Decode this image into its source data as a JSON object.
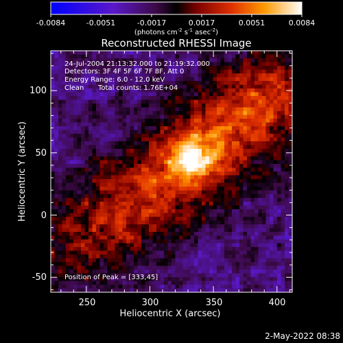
{
  "colorbar": {
    "ticks": [
      "-0.0084",
      "-0.0051",
      "-0.0017",
      "0.0017",
      "0.0051",
      "0.0084"
    ],
    "unit_parts": [
      "(photons cm",
      "-2",
      " s",
      "-1",
      " asec",
      "-2",
      ")"
    ],
    "vmin": -0.0084,
    "vmax": 0.0084
  },
  "chart_data": {
    "type": "heatmap",
    "title": "Reconstructed RHESSI Image",
    "xlabel": "Heliocentric X (arcsec)",
    "ylabel": "Heliocentric Y (arcsec)",
    "xlim": [
      222,
      412
    ],
    "ylim": [
      -62,
      132
    ],
    "xticks": [
      250,
      300,
      350,
      400
    ],
    "xtick_labels": [
      "250",
      "300",
      "350",
      "400"
    ],
    "yticks": [
      -50,
      0,
      50,
      100
    ],
    "ytick_labels": [
      "-50",
      "0",
      "50",
      "100"
    ],
    "peak": [
      333,
      45
    ],
    "annotations": {
      "time_range": "24-Jul-2004 21:13:32.000 to 21:19:32.000",
      "detectors": "Detectors: 3F 4F 5F 6F 7F 8F, Att 0",
      "energy": "Energy Range: 6.0 - 12.0 keV",
      "method": "Clean",
      "counts": "Total counts: 1.76E+04",
      "peak_label": "Position of Peak = [333,45]"
    }
  },
  "footer": {
    "date": "2-May-2022 08:38"
  }
}
